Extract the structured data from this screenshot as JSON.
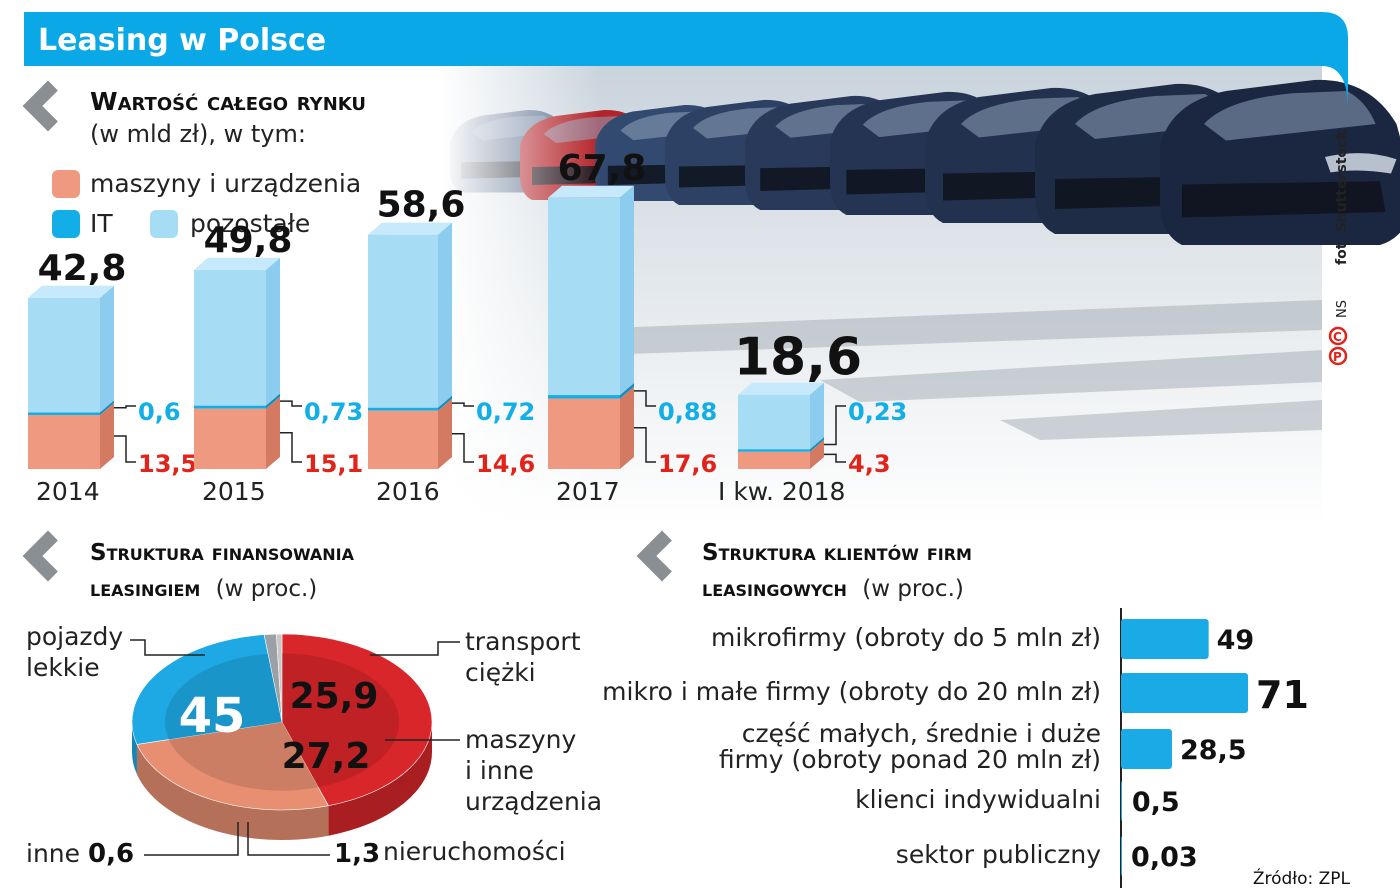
{
  "header": {
    "title": "Leasing w Polsce"
  },
  "credits": {
    "photo": "fot. Shutterstock",
    "author": "NS",
    "copyright_mark": "©P",
    "source": "Źródło: ZPL"
  },
  "colors": {
    "header_blue": "#0aa8e6",
    "it_blue": "#12aee8",
    "other_light_blue": "#a7dcf5",
    "machines_salmon": "#ef9a80",
    "red_text": "#e2231a",
    "pie_red": "#d9262a",
    "pie_salmon": "#e88f72",
    "pie_blue": "#1ea9e4",
    "bar_blue": "#1aaae6"
  },
  "chart_data": [
    {
      "type": "bar",
      "title": "Wartość całego rynku",
      "subtitle": "(w mld zł), w tym:",
      "legend": [
        {
          "label": "maszyny i urządzenia",
          "color": "#ef9a80"
        },
        {
          "label": "IT",
          "color": "#12aee8"
        },
        {
          "label": "pozostałe",
          "color": "#a7dcf5"
        }
      ],
      "categories": [
        "2014",
        "2015",
        "2016",
        "2017",
        "I kw. 2018"
      ],
      "totals": [
        "42,8",
        "49,8",
        "58,6",
        "67,8",
        "18,6"
      ],
      "totals_value": [
        42.8,
        49.8,
        58.6,
        67.8,
        18.6
      ],
      "series": [
        {
          "name": "maszyny i urządzenia",
          "values": [
            13.5,
            15.1,
            14.6,
            17.6,
            4.3
          ],
          "labels": [
            "13,5",
            "15,1",
            "14,6",
            "17,6",
            "4,3"
          ]
        },
        {
          "name": "IT",
          "values": [
            0.6,
            0.73,
            0.72,
            0.88,
            0.23
          ],
          "labels": [
            "0,6",
            "0,73",
            "0,72",
            "0,88",
            "0,23"
          ]
        }
      ]
    },
    {
      "type": "pie",
      "title": "Struktura finansowania",
      "title_line2": "leasingiem",
      "subtitle": "(w proc.)",
      "slices": [
        {
          "label_lines": [
            "pojazdy",
            "lekkie"
          ],
          "value": 45,
          "display": "45",
          "color": "#d9262a"
        },
        {
          "label_lines": [
            "transport",
            "ciężki"
          ],
          "value": 25.9,
          "display": "25,9",
          "color": "#e88f72"
        },
        {
          "label_lines": [
            "maszyny",
            "i inne",
            "urządzenia"
          ],
          "value": 27.2,
          "display": "27,2",
          "color": "#1ea9e4"
        },
        {
          "label_lines": [
            "nieruchomości"
          ],
          "value": 1.3,
          "display": "1,3",
          "color": "#9aa0a6"
        },
        {
          "label_lines": [
            "inne"
          ],
          "value": 0.6,
          "display": "0,6",
          "color": "#c8c8c8"
        }
      ]
    },
    {
      "type": "bar",
      "orientation": "horizontal",
      "title": "Struktura klientów firm",
      "title_line2": "leasingowych",
      "subtitle": "(w proc.)",
      "categories": [
        [
          "mikrofirmy (obroty do 5 mln zł)"
        ],
        [
          "mikro i małe firmy (obroty do 20 mln zł)"
        ],
        [
          "część małych, średnie i duże",
          "firmy (obroty ponad 20 mln zł)"
        ],
        [
          "klienci indywidualni"
        ],
        [
          "sektor publiczny"
        ]
      ],
      "values": [
        49,
        71,
        28.5,
        0.5,
        0.03
      ],
      "labels": [
        "49",
        "71",
        "28,5",
        "0,5",
        "0,03"
      ]
    }
  ]
}
